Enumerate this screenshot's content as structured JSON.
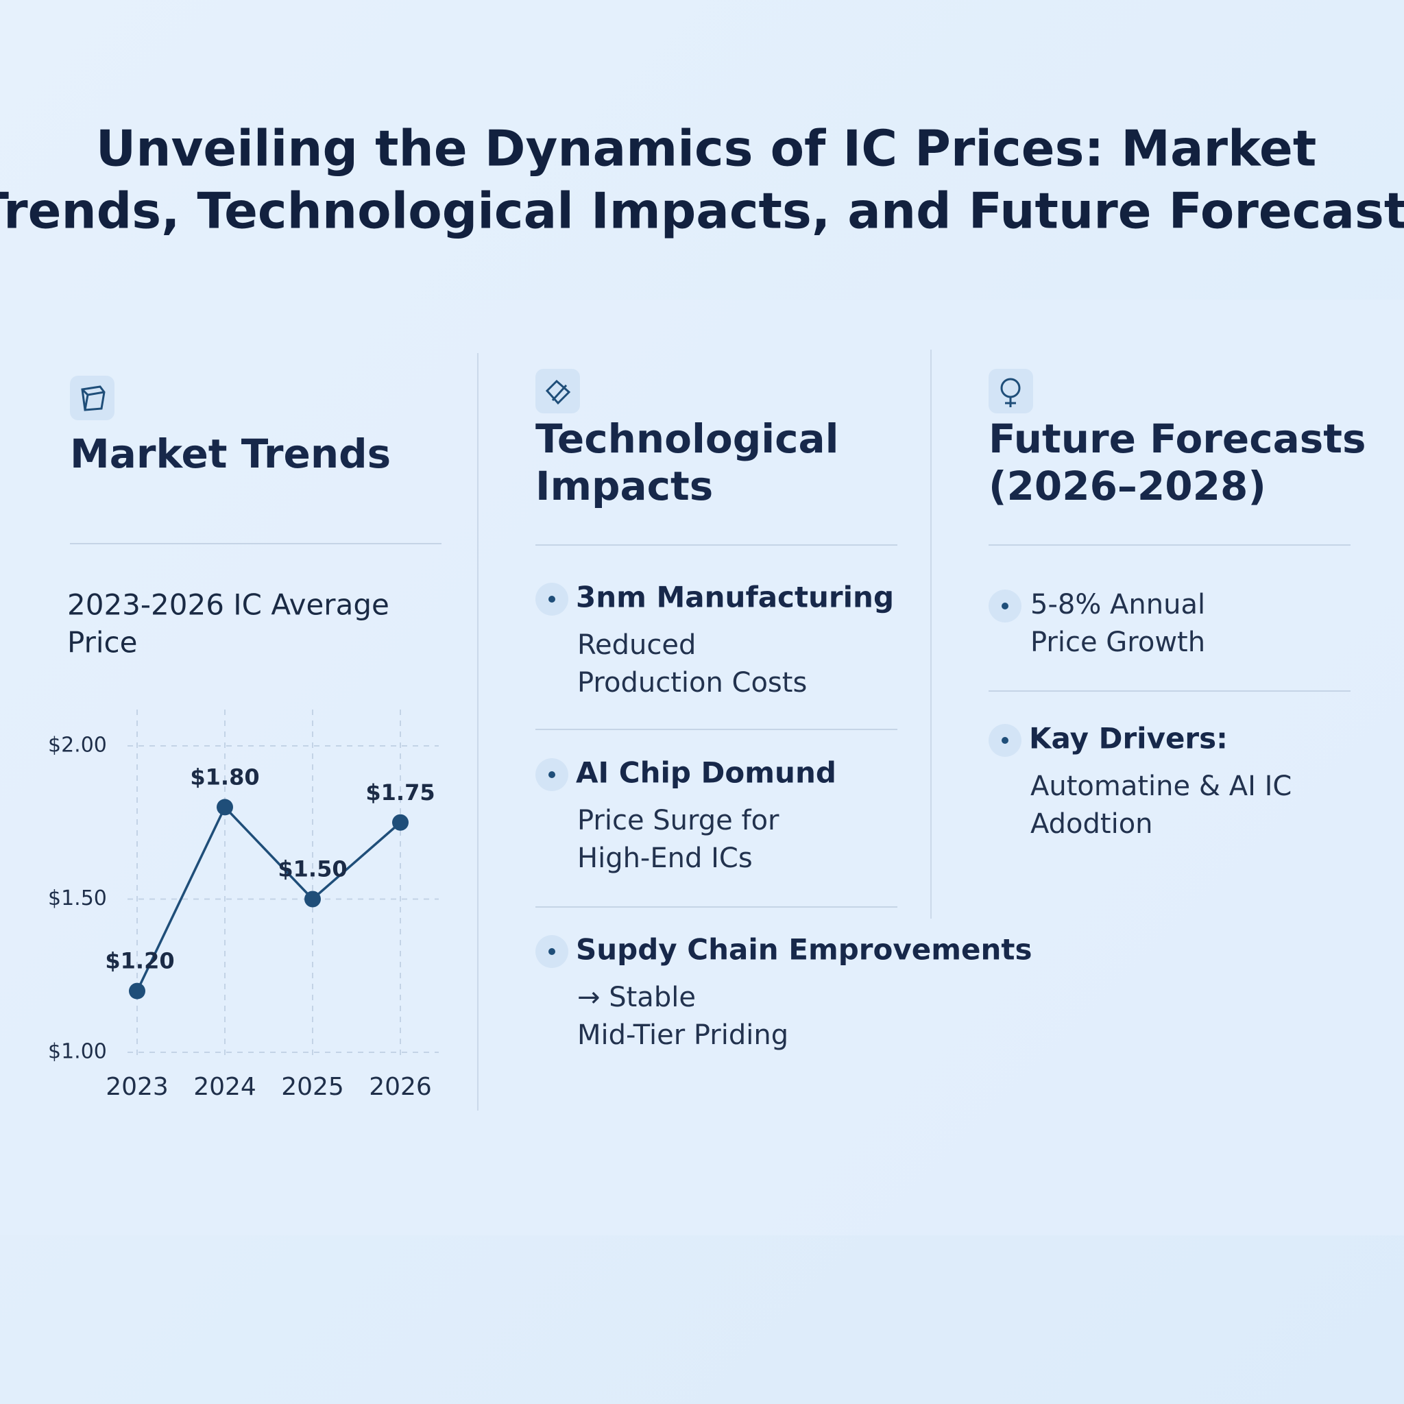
{
  "header": {
    "title_lines": [
      "Unveiling the Dynamics of IC Prices: Market",
      "Trends, Technological Impacts, and Future Forecasts"
    ]
  },
  "columns": [
    {
      "heading_lines": [
        "Market Trends"
      ],
      "subheading_lines": [
        "2023-2026 IC Average",
        "Price"
      ]
    },
    {
      "heading_lines": [
        "Technological",
        "Impacts"
      ],
      "items": [
        {
          "title": "3nm Manufacturing",
          "description_lines": [
            "Reduced",
            "Production Costs"
          ]
        },
        {
          "title": "AI Chip Domund",
          "description_lines": [
            "Price Surge for",
            "High-End ICs"
          ]
        },
        {
          "title": "Supdy Chain Emprovements",
          "description_lines": [
            "→ Stable",
            "Mid-Tier Priding"
          ]
        }
      ]
    },
    {
      "heading_lines": [
        "Future Forecasts",
        "(2026–2028)"
      ],
      "items": [
        {
          "description_lines": [
            "5-8% Annual",
            "Price Growth"
          ]
        },
        {
          "title": "Kay Drivers:",
          "description_lines": [
            "Automatine & AI IC",
            "Adodtion"
          ]
        }
      ]
    }
  ],
  "chart_data": {
    "type": "line",
    "categories": [
      "2023",
      "2024",
      "2025",
      "2026"
    ],
    "series": [
      {
        "color": "#1f4e79",
        "values": [
          1.2,
          1.8,
          1.5,
          1.75
        ],
        "value_labels": [
          "$1.20",
          "$1.80",
          "$1.50",
          "$1.75"
        ]
      }
    ],
    "ylim": [
      1,
      2
    ],
    "yticks": [
      {
        "value": 1,
        "label": "$1.00"
      },
      {
        "value": 1.5,
        "label": "$1.50"
      },
      {
        "value": 2,
        "label": "$2.00"
      }
    ],
    "grid": true
  }
}
